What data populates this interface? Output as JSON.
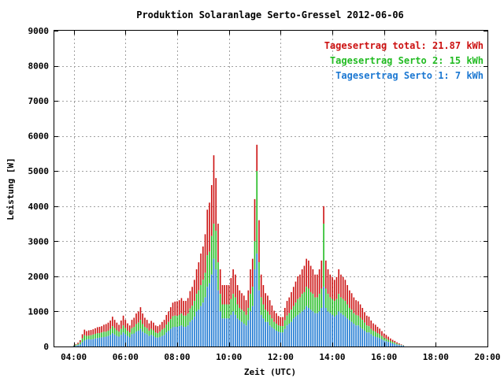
{
  "chart_data": {
    "type": "bar",
    "title": "Produktion Solaranlage Serto-Gressel 2012-06-06",
    "xlabel": "Zeit (UTC)",
    "ylabel": "Leistung [W]",
    "xlim": [
      3.25,
      20.0
    ],
    "ylim": [
      0,
      9000
    ],
    "x_tick_labels": [
      "04:00",
      "06:00",
      "08:00",
      "10:00",
      "12:00",
      "14:00",
      "16:00",
      "18:00",
      "20:00"
    ],
    "y_tick_labels": [
      "0",
      "1000",
      "2000",
      "3000",
      "4000",
      "5000",
      "6000",
      "7000",
      "8000",
      "9000"
    ],
    "grid": true,
    "legend_position": "top-right",
    "stacked": true,
    "bar_interval_minutes": 5,
    "colors": {
      "serto1": "#1c78d2",
      "serto2": "#22bb22",
      "total": "#cc1111"
    },
    "legend": [
      {
        "text": "Tagesertrag total: 21.87 kWh",
        "color": "#cc1111"
      },
      {
        "text": "Tagesertrag Serto 2: 15 kWh",
        "color": "#22bb22"
      },
      {
        "text": "Tagesertrag Serto 1: 7 kWh",
        "color": "#1c78d2"
      }
    ],
    "x_start": "04:00",
    "series": [
      {
        "name": "Serto 1",
        "values": [
          10,
          20,
          40,
          60,
          120,
          170,
          200,
          210,
          200,
          210,
          230,
          240,
          250,
          260,
          270,
          280,
          300,
          330,
          380,
          340,
          300,
          280,
          330,
          400,
          350,
          300,
          260,
          350,
          370,
          420,
          450,
          500,
          420,
          380,
          350,
          300,
          330,
          300,
          260,
          250,
          270,
          300,
          330,
          400,
          450,
          500,
          550,
          560,
          560,
          580,
          600,
          560,
          560,
          600,
          700,
          760,
          850,
          1000,
          1050,
          1150,
          1250,
          1400,
          1700,
          1800,
          2050,
          2500,
          2200,
          1600,
          1000,
          800,
          800,
          800,
          800,
          900,
          1000,
          900,
          800,
          750,
          700,
          650,
          600,
          750,
          1000,
          1150,
          2200,
          2650,
          1600,
          900,
          800,
          700,
          700,
          600,
          550,
          500,
          450,
          420,
          400,
          400,
          500,
          600,
          650,
          700,
          800,
          850,
          900,
          950,
          1000,
          1050,
          1150,
          1100,
          1050,
          1000,
          950,
          950,
          1000,
          1100,
          1700,
          1100,
          1000,
          950,
          900,
          850,
          900,
          1000,
          950,
          900,
          850,
          800,
          750,
          700,
          650,
          600,
          600,
          550,
          500,
          450,
          400,
          400,
          350,
          300,
          280,
          260,
          240,
          200,
          170,
          150,
          130,
          110,
          90,
          70,
          50,
          40,
          30,
          20
        ]
      },
      {
        "name": "Serto 2",
        "values": [
          20,
          50,
          70,
          120,
          230,
          320,
          300,
          310,
          320,
          340,
          360,
          380,
          380,
          400,
          420,
          420,
          450,
          500,
          580,
          520,
          460,
          420,
          500,
          600,
          520,
          450,
          400,
          520,
          560,
          640,
          680,
          760,
          640,
          560,
          520,
          450,
          500,
          460,
          400,
          380,
          420,
          480,
          520,
          620,
          700,
          780,
          860,
          880,
          870,
          900,
          940,
          880,
          880,
          940,
          1080,
          1160,
          1300,
          1500,
          1600,
          1750,
          1900,
          2100,
          2600,
          2700,
          3150,
          3500,
          3300,
          2400,
          1500,
          1200,
          1200,
          1200,
          1200,
          1350,
          1500,
          1400,
          1200,
          1100,
          1050,
          1000,
          900,
          1100,
          1500,
          1700,
          3000,
          5000,
          2400,
          1400,
          1200,
          1050,
          1000,
          900,
          800,
          700,
          650,
          600,
          580,
          580,
          750,
          880,
          950,
          1050,
          1150,
          1250,
          1350,
          1400,
          1500,
          1550,
          1700,
          1650,
          1550,
          1500,
          1400,
          1400,
          1500,
          1650,
          3500,
          1650,
          1500,
          1400,
          1350,
          1300,
          1350,
          1500,
          1400,
          1350,
          1300,
          1200,
          1100,
          1050,
          950,
          900,
          880,
          820,
          760,
          680,
          600,
          580,
          500,
          450,
          420,
          380,
          350,
          300,
          250,
          220,
          190,
          160,
          130,
          110,
          80,
          60,
          40,
          30
        ]
      },
      {
        "name": "total",
        "values": [
          30,
          70,
          110,
          180,
          350,
          480,
          440,
          460,
          470,
          490,
          520,
          550,
          560,
          580,
          620,
          640,
          680,
          740,
          850,
          760,
          680,
          620,
          740,
          880,
          760,
          660,
          600,
          760,
          820,
          940,
          1000,
          1120,
          940,
          820,
          760,
          660,
          730,
          680,
          600,
          580,
          620,
          700,
          760,
          900,
          1000,
          1120,
          1250,
          1280,
          1290,
          1320,
          1380,
          1300,
          1300,
          1380,
          1580,
          1700,
          1900,
          2200,
          2400,
          2650,
          2850,
          3200,
          3900,
          4100,
          4600,
          5450,
          4800,
          3500,
          2200,
          1750,
          1750,
          1750,
          1750,
          1950,
          2200,
          2050,
          1750,
          1600,
          1520,
          1450,
          1320,
          1600,
          2200,
          2500,
          4200,
          5750,
          3600,
          2050,
          1750,
          1520,
          1450,
          1320,
          1170,
          1020,
          950,
          870,
          840,
          840,
          1100,
          1300,
          1400,
          1550,
          1700,
          1850,
          2000,
          2050,
          2200,
          2300,
          2500,
          2450,
          2300,
          2200,
          2050,
          2050,
          2200,
          2450,
          4000,
          2450,
          2200,
          2050,
          1980,
          1900,
          1980,
          2200,
          2050,
          1980,
          1900,
          1750,
          1600,
          1520,
          1400,
          1320,
          1290,
          1200,
          1100,
          980,
          880,
          850,
          740,
          660,
          620,
          560,
          510,
          440,
          370,
          330,
          280,
          230,
          190,
          160,
          120,
          90,
          60,
          40
        ]
      }
    ]
  }
}
